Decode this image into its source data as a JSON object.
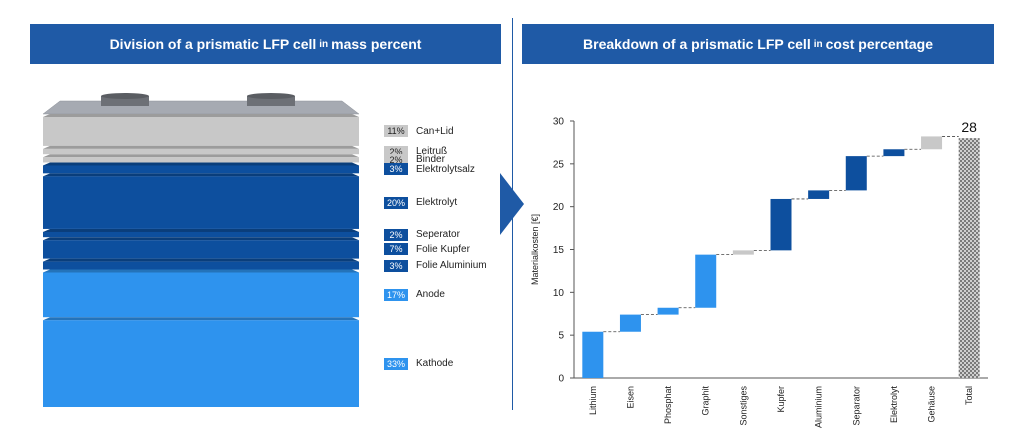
{
  "left_title": {
    "pre": "Division of a prismatic LFP cell",
    "small": "in",
    "post": "mass percent"
  },
  "right_title": {
    "pre": "Breakdown of a prismatic LFP cell",
    "small": "in",
    "post": "cost percentage"
  },
  "colors": {
    "header": "#1f5aa6",
    "grey": "#c8c8c8",
    "dark": "#0d4f9e",
    "mid": "#1464be",
    "light": "#2e93ee",
    "total": "#9a9a9a"
  },
  "layers": [
    {
      "pct": "11%",
      "label": "Can+Lid",
      "value": 11,
      "color": "grey"
    },
    {
      "pct": "2%",
      "label": "Leitruß",
      "value": 2,
      "color": "grey"
    },
    {
      "pct": "2%",
      "label": "Binder",
      "value": 2,
      "color": "grey"
    },
    {
      "pct": "3%",
      "label": "Elektrolytsalz",
      "value": 3,
      "color": "dark"
    },
    {
      "pct": "20%",
      "label": "Elektrolyt",
      "value": 20,
      "color": "dark"
    },
    {
      "pct": "2%",
      "label": "Seperator",
      "value": 2,
      "color": "dark"
    },
    {
      "pct": "7%",
      "label": "Folie Kupfer",
      "value": 7,
      "color": "dark"
    },
    {
      "pct": "3%",
      "label": "Folie Aluminium",
      "value": 3,
      "color": "dark"
    },
    {
      "pct": "17%",
      "label": "Anode",
      "value": 17,
      "color": "light"
    },
    {
      "pct": "33%",
      "label": "Kathode",
      "value": 33,
      "color": "light"
    }
  ],
  "chart_data": {
    "type": "bar",
    "subtype": "waterfall",
    "ylabel": "Materialkosten [€]",
    "ylim": [
      0,
      30
    ],
    "yticks": [
      0,
      5,
      10,
      15,
      20,
      25,
      30
    ],
    "categories": [
      "Lithium",
      "Eisen",
      "Phosphat",
      "Graphit",
      "Sonstiges",
      "Kupfer",
      "Aluminium",
      "Separator",
      "Elektrolyt",
      "Gehäuse",
      "Total"
    ],
    "values": [
      5.4,
      2.0,
      0.8,
      6.2,
      0.5,
      6.0,
      1.0,
      4.0,
      0.8,
      1.5,
      28
    ],
    "total_label": "28",
    "bar_colors": [
      "light",
      "light",
      "light",
      "light",
      "grey",
      "dark",
      "dark",
      "dark",
      "dark",
      "grey",
      "total"
    ]
  }
}
